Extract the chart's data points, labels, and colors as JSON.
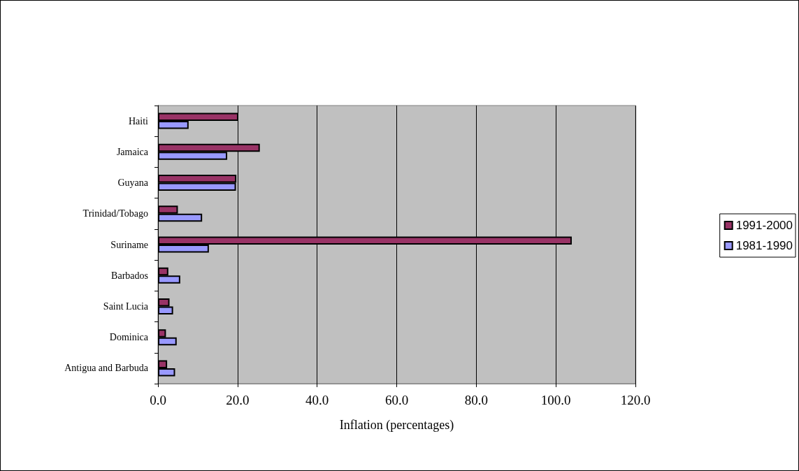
{
  "chart_data": {
    "type": "bar",
    "orientation": "horizontal",
    "xlabel": "Inflation (percentages)",
    "categories": [
      "Haiti",
      "Jamaica",
      "Guyana",
      "Trinidad/Tobago",
      "Suriname",
      "Barbados",
      "Saint Lucia",
      "Dominica",
      "Antigua and Barbuda"
    ],
    "series": [
      {
        "name": "1991-2000",
        "color": "#993366",
        "values": [
          20.2,
          25.6,
          19.7,
          5.0,
          104,
          2.6,
          2.9,
          2.0,
          2.3
        ]
      },
      {
        "name": "1981-1990",
        "color": "#9999ff",
        "values": [
          7.7,
          17.4,
          19.6,
          11.1,
          12.8,
          5.6,
          3.8,
          4.7,
          4.3
        ]
      }
    ],
    "xlim": [
      0,
      120
    ],
    "xticks": [
      {
        "value": 0,
        "label": "0.0"
      },
      {
        "value": 20,
        "label": "20.0"
      },
      {
        "value": 40,
        "label": "40.0"
      },
      {
        "value": 60,
        "label": "60.0"
      },
      {
        "value": 80,
        "label": "80.0"
      },
      {
        "value": 100,
        "label": "100.0"
      },
      {
        "value": 120,
        "label": "120.0"
      }
    ],
    "grid": "x",
    "legend": "right"
  }
}
